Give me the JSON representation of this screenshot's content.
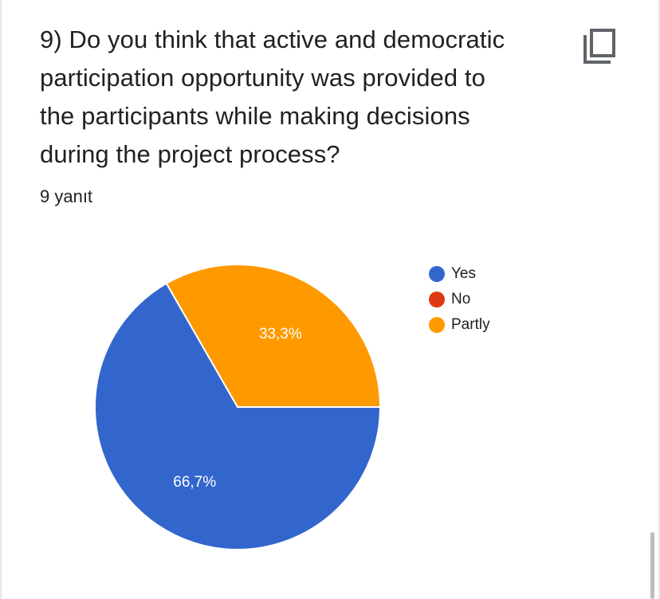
{
  "question": {
    "lines": [
      "9) Do you think that active and democratic",
      "participation opportunity was provided to",
      "the participants while making decisions",
      "during the project process?"
    ]
  },
  "responses": "9 yanıt",
  "icons": {
    "copy": "copy-icon"
  },
  "chart_data": {
    "type": "pie",
    "categories": [
      "Yes",
      "No",
      "Partly"
    ],
    "values": [
      66.7,
      0,
      33.3
    ],
    "labels": [
      "66,7%",
      "",
      "33,3%"
    ],
    "colors": [
      "#3366cc",
      "#dc3912",
      "#ff9900"
    ],
    "title": "",
    "legend_position": "right"
  }
}
